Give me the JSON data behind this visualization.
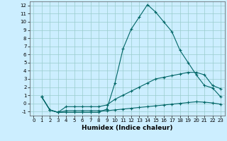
{
  "xlabel": "Humidex (Indice chaleur)",
  "background_color": "#cceeff",
  "grid_color": "#99cccc",
  "line_color": "#006666",
  "xlim": [
    -0.5,
    23.5
  ],
  "ylim": [
    -1.5,
    12.5
  ],
  "xticks": [
    0,
    1,
    2,
    3,
    4,
    5,
    6,
    7,
    8,
    9,
    10,
    11,
    12,
    13,
    14,
    15,
    16,
    17,
    18,
    19,
    20,
    21,
    22,
    23
  ],
  "yticks": [
    -1,
    0,
    1,
    2,
    3,
    4,
    5,
    6,
    7,
    8,
    9,
    10,
    11,
    12
  ],
  "line1_x": [
    1,
    2,
    3,
    4,
    5,
    6,
    7,
    8,
    9,
    10,
    11,
    12,
    13,
    14,
    15,
    16,
    17,
    18,
    19,
    20,
    21,
    22,
    23
  ],
  "line1_y": [
    0.8,
    -0.8,
    -1.1,
    -1.1,
    -1.1,
    -1.1,
    -1.1,
    -1.1,
    -0.7,
    2.5,
    6.7,
    9.1,
    10.6,
    12.1,
    11.2,
    10.0,
    8.8,
    6.5,
    5.0,
    3.5,
    2.2,
    1.9,
    0.8
  ],
  "line2_x": [
    1,
    2,
    3,
    4,
    5,
    6,
    7,
    8,
    9,
    10,
    11,
    12,
    13,
    14,
    15,
    16,
    17,
    18,
    19,
    20,
    21,
    22,
    23
  ],
  "line2_y": [
    0.8,
    -0.8,
    -1.1,
    -0.4,
    -0.4,
    -0.4,
    -0.4,
    -0.4,
    -0.2,
    0.5,
    1.0,
    1.5,
    2.0,
    2.5,
    3.0,
    3.2,
    3.4,
    3.6,
    3.8,
    3.8,
    3.5,
    2.2,
    1.8
  ],
  "line3_x": [
    1,
    2,
    3,
    4,
    5,
    6,
    7,
    8,
    9,
    10,
    11,
    12,
    13,
    14,
    15,
    16,
    17,
    18,
    19,
    20,
    21,
    22,
    23
  ],
  "line3_y": [
    0.8,
    -0.8,
    -1.1,
    -0.9,
    -0.9,
    -0.9,
    -0.9,
    -0.9,
    -0.9,
    -0.8,
    -0.7,
    -0.6,
    -0.5,
    -0.4,
    -0.3,
    -0.2,
    -0.1,
    0.0,
    0.1,
    0.2,
    0.15,
    0.05,
    -0.1
  ]
}
